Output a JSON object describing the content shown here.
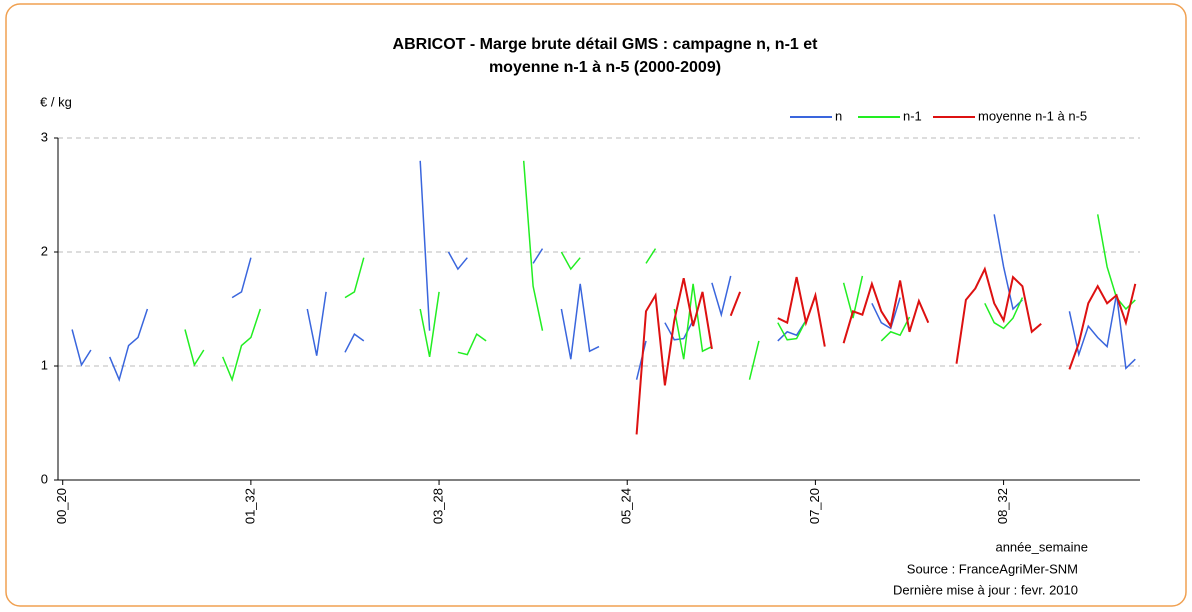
{
  "chart_data": {
    "type": "line",
    "title": [
      "ABRICOT - Marge brute détail GMS : campagne n, n-1 et",
      "moyenne n-1 à n-5 (2000-2009)"
    ],
    "y_label": "€ / kg",
    "x_label": "année_semaine",
    "source": "Source : FranceAgriMer-SNM",
    "update": "Dernière mise à jour : fevr. 2010",
    "categories": [
      "00_20",
      null,
      null,
      null,
      null,
      null,
      null,
      null,
      null,
      null,
      null,
      null,
      null,
      null,
      null,
      null,
      null,
      null,
      null,
      null,
      "01_32",
      null,
      null,
      null,
      null,
      null,
      null,
      null,
      null,
      null,
      null,
      null,
      null,
      null,
      null,
      null,
      null,
      null,
      null,
      null,
      "03_28",
      null,
      null,
      null,
      null,
      null,
      null,
      null,
      null,
      null,
      null,
      null,
      null,
      null,
      null,
      null,
      null,
      null,
      null,
      null,
      "05_24",
      null,
      null,
      null,
      null,
      null,
      null,
      null,
      null,
      null,
      null,
      null,
      null,
      null,
      null,
      null,
      null,
      null,
      null,
      null,
      "07_20",
      null,
      null,
      null,
      null,
      null,
      null,
      null,
      null,
      null,
      null,
      null,
      null,
      null,
      null,
      null,
      null,
      null,
      null,
      null,
      "08_32",
      null,
      null,
      null,
      null,
      null,
      null,
      null,
      null,
      null,
      null,
      null,
      null,
      null,
      null
    ],
    "ylim": [
      0,
      3
    ],
    "yticks": [
      0,
      1,
      2,
      3
    ],
    "grid": true,
    "legend": "top-right",
    "series": [
      {
        "name": "n",
        "color": "#3a66dd",
        "values": [
          null,
          1.32,
          1.01,
          1.14,
          null,
          1.08,
          0.88,
          1.18,
          1.25,
          1.5,
          null,
          null,
          null,
          null,
          null,
          null,
          null,
          null,
          1.6,
          1.65,
          1.95,
          null,
          null,
          null,
          null,
          null,
          1.5,
          1.09,
          1.65,
          null,
          1.12,
          1.28,
          1.22,
          null,
          null,
          null,
          null,
          null,
          2.8,
          1.31,
          null,
          2.0,
          1.85,
          1.95,
          null,
          null,
          null,
          null,
          null,
          null,
          1.9,
          2.03,
          null,
          1.5,
          1.06,
          1.72,
          1.13,
          1.17,
          null,
          null,
          null,
          0.88,
          1.22,
          null,
          1.38,
          1.23,
          1.24,
          1.4,
          null,
          1.73,
          1.45,
          1.79,
          null,
          null,
          null,
          null,
          1.22,
          1.3,
          1.27,
          1.4,
          null,
          null,
          null,
          null,
          null,
          null,
          1.55,
          1.38,
          1.33,
          1.6,
          null,
          null,
          null,
          null,
          null,
          null,
          null,
          null,
          null,
          2.33,
          1.87,
          1.5,
          1.58,
          null,
          null,
          null,
          null,
          1.48,
          1.1,
          1.35,
          1.25,
          1.17,
          1.63,
          0.98,
          1.06
        ]
      },
      {
        "name": "n-1",
        "color": "#22ee22",
        "values": [
          null,
          null,
          null,
          null,
          null,
          null,
          null,
          null,
          null,
          null,
          null,
          null,
          null,
          1.32,
          1.01,
          1.14,
          null,
          1.08,
          0.88,
          1.18,
          1.25,
          1.5,
          null,
          null,
          null,
          null,
          null,
          null,
          null,
          null,
          1.6,
          1.65,
          1.95,
          null,
          null,
          null,
          null,
          null,
          1.5,
          1.08,
          1.65,
          null,
          1.12,
          1.1,
          1.28,
          1.22,
          null,
          null,
          null,
          2.8,
          1.7,
          1.31,
          null,
          2.0,
          1.85,
          1.95,
          null,
          null,
          null,
          null,
          null,
          null,
          1.9,
          2.03,
          null,
          1.5,
          1.06,
          1.72,
          1.13,
          1.17,
          null,
          null,
          null,
          0.88,
          1.22,
          null,
          1.38,
          1.23,
          1.24,
          1.4,
          null,
          null,
          null,
          1.73,
          1.42,
          1.79,
          null,
          1.22,
          1.3,
          1.27,
          1.43,
          null,
          null,
          null,
          null,
          null,
          null,
          null,
          1.55,
          1.38,
          1.33,
          1.42,
          1.6,
          null,
          null,
          null,
          null,
          null,
          null,
          null,
          2.33,
          1.87,
          1.6,
          1.5,
          1.58
        ]
      },
      {
        "name": "moyenne n-1 à n-5",
        "color": "#dd1111",
        "values": [
          null,
          null,
          null,
          null,
          null,
          null,
          null,
          null,
          null,
          null,
          null,
          null,
          null,
          null,
          null,
          null,
          null,
          null,
          null,
          null,
          null,
          null,
          null,
          null,
          null,
          null,
          null,
          null,
          null,
          null,
          null,
          null,
          null,
          null,
          null,
          null,
          null,
          null,
          null,
          null,
          null,
          null,
          null,
          null,
          null,
          null,
          null,
          null,
          null,
          null,
          null,
          null,
          null,
          null,
          null,
          null,
          null,
          null,
          null,
          null,
          null,
          0.4,
          1.48,
          1.62,
          0.83,
          1.4,
          1.77,
          1.35,
          1.65,
          1.15,
          null,
          1.44,
          1.65,
          null,
          null,
          null,
          1.42,
          1.38,
          1.78,
          1.38,
          1.62,
          1.17,
          null,
          1.2,
          1.48,
          1.45,
          1.72,
          1.48,
          1.35,
          1.75,
          1.3,
          1.57,
          1.38,
          null,
          null,
          1.02,
          1.58,
          1.68,
          1.85,
          1.55,
          1.4,
          1.78,
          1.7,
          1.3,
          1.37,
          null,
          null,
          0.97,
          1.2,
          1.55,
          1.7,
          1.55,
          1.62,
          1.38,
          1.72
        ]
      }
    ]
  }
}
